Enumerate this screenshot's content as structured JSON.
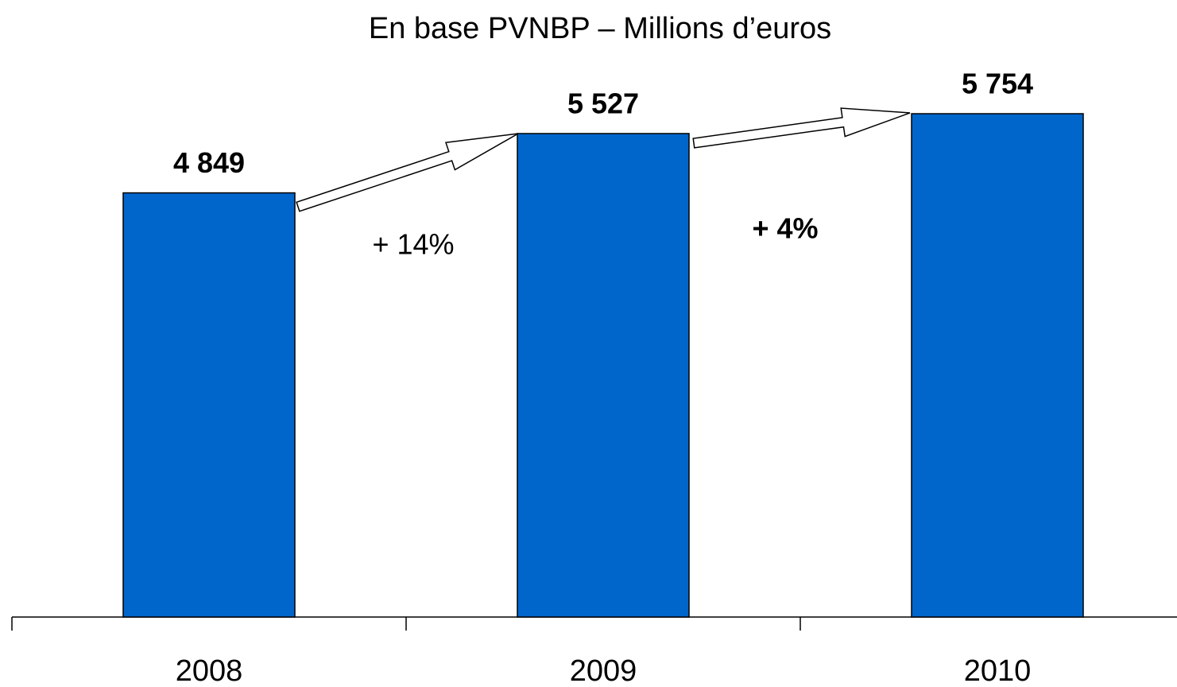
{
  "chart_data": {
    "type": "bar",
    "title": "En base PVNBP – Millions d’euros",
    "categories": [
      "2008",
      "2009",
      "2010"
    ],
    "values": [
      4849,
      5527,
      5754
    ],
    "value_labels": [
      "4 849",
      "5 527",
      "5 754"
    ],
    "color": "#0066cc",
    "annotations": [
      "+ 14%",
      "+ 4%"
    ]
  }
}
